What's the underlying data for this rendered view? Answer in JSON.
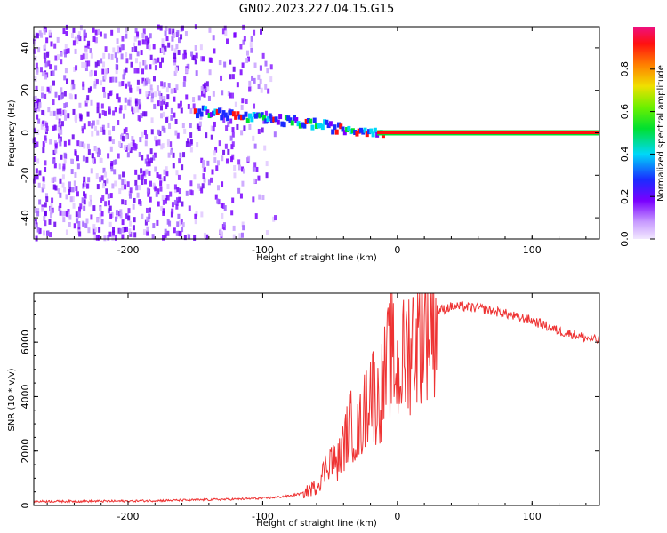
{
  "title": "GN02.2023.227.04.15.G15",
  "chart_data": [
    {
      "type": "heatmap",
      "xlabel": "Height of straight line (km)",
      "ylabel": "Frequency (Hz)",
      "xlim": [
        -270,
        150
      ],
      "ylim": [
        -50,
        50
      ],
      "xticks": [
        -200,
        -100,
        0,
        100
      ],
      "yticks": [
        -40,
        -20,
        0,
        20,
        40
      ],
      "colorbar": {
        "label": "Normalized spectral amplitude",
        "range": [
          0,
          1
        ],
        "ticks": [
          0.0,
          0.2,
          0.4,
          0.6,
          0.8
        ]
      },
      "signal_ridge": [
        {
          "x": -150,
          "y": 10
        },
        {
          "x": -130,
          "y": 9
        },
        {
          "x": -110,
          "y": 7
        },
        {
          "x": -90,
          "y": 6
        },
        {
          "x": -75,
          "y": 5
        },
        {
          "x": -60,
          "y": 4
        },
        {
          "x": -45,
          "y": 2
        },
        {
          "x": -30,
          "y": 1
        },
        {
          "x": -15,
          "y": 1
        },
        {
          "x": 0,
          "y": 0
        },
        {
          "x": 150,
          "y": 0
        }
      ]
    },
    {
      "type": "line",
      "xlabel": "Height of straight line (km)",
      "ylabel": "SNR (10 * v/v)",
      "xlim": [
        -270,
        150
      ],
      "ylim": [
        0,
        7800
      ],
      "xticks": [
        -200,
        -100,
        0,
        100
      ],
      "yticks": [
        0,
        2000,
        4000,
        6000
      ],
      "series": [
        {
          "color": "#ee3333",
          "x": [
            -270,
            -250,
            -200,
            -150,
            -130,
            -100,
            -90,
            -80,
            -70,
            -60,
            -55,
            -50,
            -45,
            -40,
            -35,
            -30,
            -25,
            -20,
            -15,
            -10,
            -5,
            0,
            10,
            20,
            30,
            40,
            50,
            60,
            70,
            80,
            90,
            100,
            110,
            120,
            130,
            140,
            150
          ],
          "y": [
            150,
            150,
            160,
            200,
            220,
            260,
            300,
            350,
            450,
            700,
            1200,
            1800,
            1500,
            2200,
            3000,
            2600,
            3300,
            4500,
            3700,
            4500,
            5600,
            4800,
            6000,
            6900,
            7150,
            7300,
            7300,
            7250,
            7150,
            7050,
            6900,
            6800,
            6600,
            6400,
            6300,
            6150,
            6050
          ]
        }
      ]
    }
  ]
}
